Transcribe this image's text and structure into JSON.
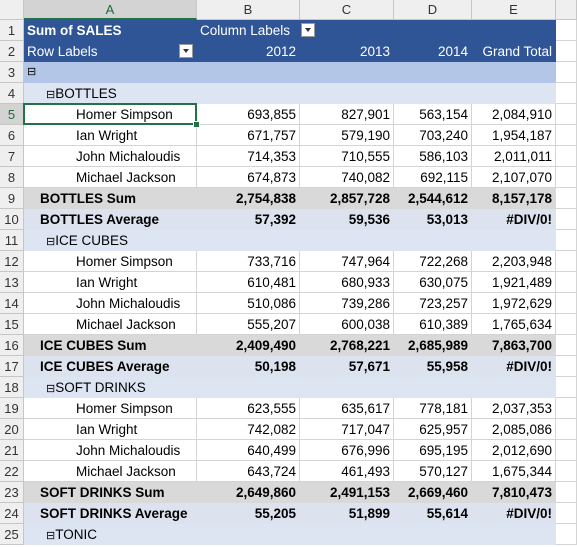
{
  "column_headers": [
    "A",
    "B",
    "C",
    "D",
    "E"
  ],
  "row_numbers": [
    1,
    2,
    3,
    4,
    5,
    6,
    7,
    8,
    9,
    10,
    11,
    12,
    13,
    14,
    15,
    16,
    17,
    18,
    19,
    20,
    21,
    22,
    23,
    24,
    25
  ],
  "pivot": {
    "title": "Sum of SALES",
    "column_labels": "Column Labels",
    "row_labels": "Row Labels",
    "years": [
      "2012",
      "2013",
      "2014"
    ],
    "grand_total": "Grand Total",
    "groups": [
      {
        "name": "BOTTLES",
        "rows": [
          {
            "name": "Homer Simpson",
            "values": [
              "693,855",
              "827,901",
              "563,154",
              "2,084,910"
            ]
          },
          {
            "name": "Ian Wright",
            "values": [
              "671,757",
              "579,190",
              "703,240",
              "1,954,187"
            ]
          },
          {
            "name": "John Michaloudis",
            "values": [
              "714,353",
              "710,555",
              "586,103",
              "2,011,011"
            ]
          },
          {
            "name": "Michael Jackson",
            "values": [
              "674,873",
              "740,082",
              "692,115",
              "2,107,070"
            ]
          }
        ],
        "sum": {
          "label": "BOTTLES Sum",
          "values": [
            "2,754,838",
            "2,857,728",
            "2,544,612",
            "8,157,178"
          ]
        },
        "average": {
          "label": "BOTTLES Average",
          "values": [
            "57,392",
            "59,536",
            "53,013",
            "#DIV/0!"
          ]
        }
      },
      {
        "name": "ICE CUBES",
        "rows": [
          {
            "name": "Homer Simpson",
            "values": [
              "733,716",
              "747,964",
              "722,268",
              "2,203,948"
            ]
          },
          {
            "name": "Ian Wright",
            "values": [
              "610,481",
              "680,933",
              "630,075",
              "1,921,489"
            ]
          },
          {
            "name": "John Michaloudis",
            "values": [
              "510,086",
              "739,286",
              "723,257",
              "1,972,629"
            ]
          },
          {
            "name": "Michael Jackson",
            "values": [
              "555,207",
              "600,038",
              "610,389",
              "1,765,634"
            ]
          }
        ],
        "sum": {
          "label": "ICE CUBES Sum",
          "values": [
            "2,409,490",
            "2,768,221",
            "2,685,989",
            "7,863,700"
          ]
        },
        "average": {
          "label": "ICE CUBES Average",
          "values": [
            "50,198",
            "57,671",
            "55,958",
            "#DIV/0!"
          ]
        }
      },
      {
        "name": "SOFT DRINKS",
        "rows": [
          {
            "name": "Homer Simpson",
            "values": [
              "623,555",
              "635,617",
              "778,181",
              "2,037,353"
            ]
          },
          {
            "name": "Ian Wright",
            "values": [
              "742,082",
              "717,047",
              "625,957",
              "2,085,086"
            ]
          },
          {
            "name": "John Michaloudis",
            "values": [
              "640,499",
              "676,996",
              "695,195",
              "2,012,690"
            ]
          },
          {
            "name": "Michael Jackson",
            "values": [
              "643,724",
              "461,493",
              "570,127",
              "1,675,344"
            ]
          }
        ],
        "sum": {
          "label": "SOFT DRINKS Sum",
          "values": [
            "2,649,860",
            "2,491,153",
            "2,669,460",
            "7,810,473"
          ]
        },
        "average": {
          "label": "SOFT DRINKS Average",
          "values": [
            "55,205",
            "51,899",
            "55,614",
            "#DIV/0!"
          ]
        }
      },
      {
        "name": "TONIC",
        "rows": []
      }
    ]
  }
}
